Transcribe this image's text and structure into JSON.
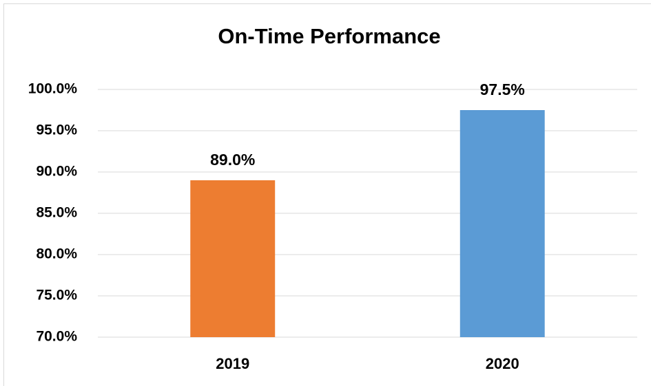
{
  "chart_data": {
    "type": "bar",
    "title": "On-Time Performance",
    "categories": [
      "2019",
      "2020"
    ],
    "values": [
      89.0,
      97.5
    ],
    "value_labels": [
      "89.0%",
      "97.5%"
    ],
    "colors": [
      "#ed7d31",
      "#5b9bd5"
    ],
    "ylim": [
      70,
      100
    ],
    "yticks": [
      {
        "value": 70,
        "label": "70.0%"
      },
      {
        "value": 75,
        "label": "75.0%"
      },
      {
        "value": 80,
        "label": "80.0%"
      },
      {
        "value": 85,
        "label": "85.0%"
      },
      {
        "value": 90,
        "label": "90.0%"
      },
      {
        "value": 95,
        "label": "95.0%"
      },
      {
        "value": 100,
        "label": "100.0%"
      }
    ],
    "grid": true
  }
}
